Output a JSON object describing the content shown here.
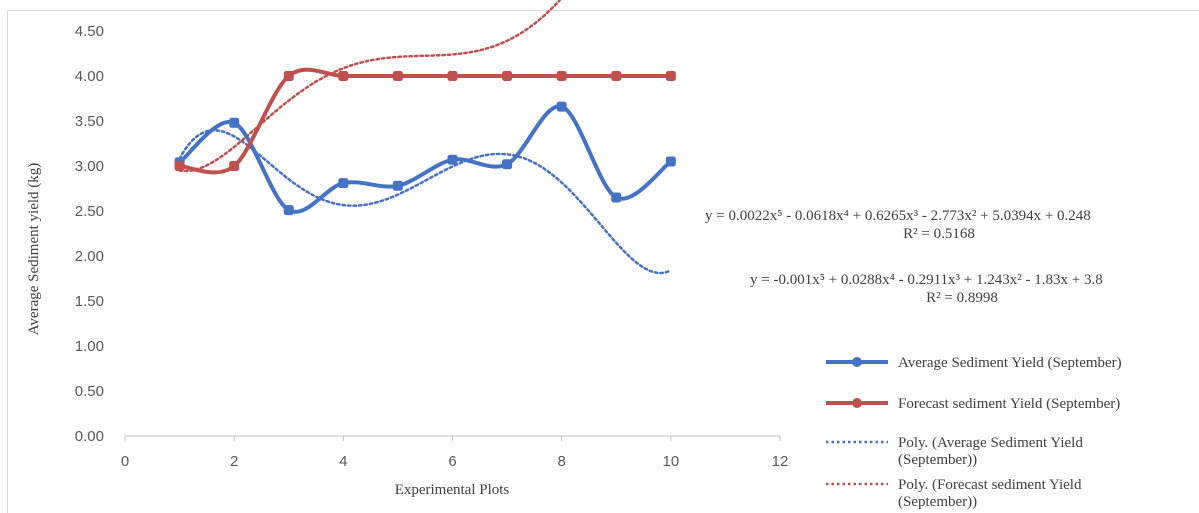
{
  "chart_data": {
    "type": "line",
    "title": "",
    "xlabel": "Experimental Plots",
    "ylabel": "Average Sediment yield (kg)",
    "xlim": [
      0,
      12
    ],
    "ylim": [
      0,
      4.5
    ],
    "x_ticks": [
      "0",
      "2",
      "4",
      "6",
      "8",
      "10",
      "12"
    ],
    "y_ticks": [
      "0.00",
      "0.50",
      "1.00",
      "1.50",
      "2.00",
      "2.50",
      "3.00",
      "3.50",
      "4.00",
      "4.50"
    ],
    "x": [
      1,
      2,
      3,
      4,
      5,
      6,
      7,
      8,
      9,
      10
    ],
    "grid": false,
    "legend_position": "right",
    "series": [
      {
        "name": "Average Sediment Yield (September)",
        "color": "#4472c4",
        "style": "solid-smooth-marker",
        "values": [
          3.04,
          3.48,
          2.51,
          2.81,
          2.78,
          3.07,
          3.02,
          3.66,
          2.65,
          3.05
        ]
      },
      {
        "name": "Forecast sediment Yield (September)",
        "color": "#c0504d",
        "style": "solid-smooth-marker",
        "values": [
          3.0,
          3.0,
          4.0,
          4.0,
          4.0,
          4.0,
          4.0,
          4.0,
          4.0,
          4.0
        ]
      }
    ],
    "trendlines": [
      {
        "name": "Poly. (Average Sediment Yield (September))",
        "color": "#4472c4",
        "style": "dotted",
        "equation": "y = 0.0022x⁵ - 0.0618x⁴ + 0.6265x³ - 2.773x² + 5.0394x + 0.248",
        "r2": "R² = 0.5168",
        "coefficients": [
          0.0022,
          -0.0618,
          0.6265,
          -2.773,
          5.0394,
          0.248
        ]
      },
      {
        "name": "Poly. (Forecast sediment Yield (September))",
        "color": "#c0504d",
        "style": "dotted",
        "equation": "y = -0.001x⁵ + 0.0288x⁴ - 0.2911x³ + 1.243x² - 1.83x + 3.8",
        "r2": "R² = 0.8998",
        "coefficients": [
          -0.001,
          0.0288,
          -0.2911,
          1.243,
          -1.83,
          3.8
        ]
      }
    ],
    "legend": [
      "Average Sediment Yield (September)",
      "Forecast sediment Yield (September)",
      "Poly. (Average Sediment Yield (September))",
      "Poly. (Forecast sediment Yield (September))"
    ]
  }
}
